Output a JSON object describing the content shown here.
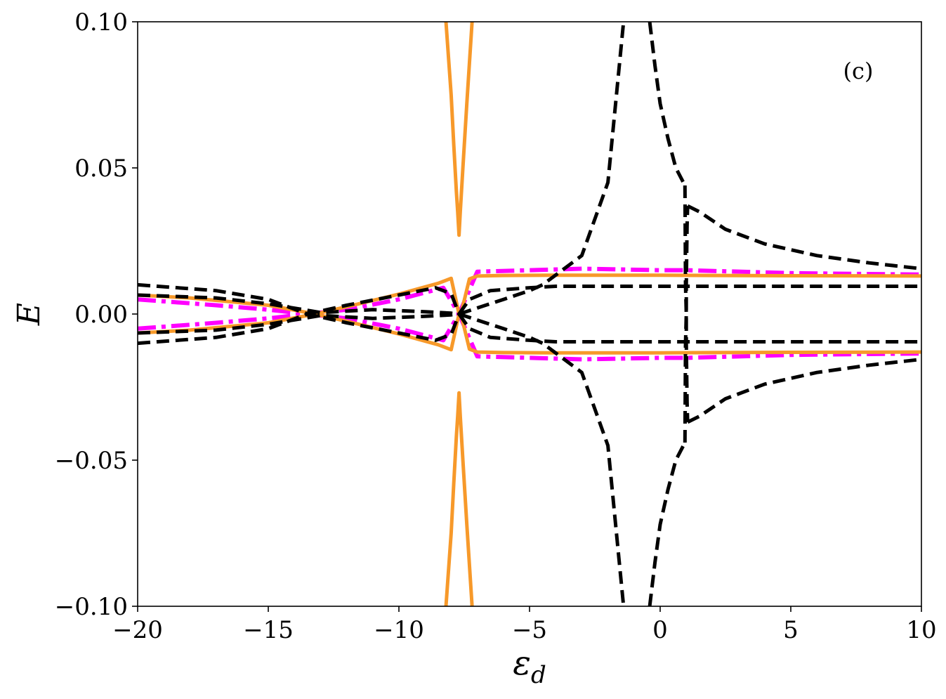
{
  "chart_data": {
    "type": "line",
    "title": "",
    "xlabel": "ε",
    "xlabel_sub": "d",
    "ylabel": "E",
    "xlim": [
      -20,
      10
    ],
    "ylim": [
      -0.1,
      0.1
    ],
    "xticks": [
      -20,
      -15,
      -10,
      -5,
      0,
      5,
      10
    ],
    "xtick_labels": [
      "−20",
      "−15",
      "−10",
      "−5",
      "0",
      "5",
      "10"
    ],
    "yticks": [
      0.1,
      0.05,
      0.0,
      -0.05,
      -0.1
    ],
    "ytick_labels": [
      "0.10",
      "0.05",
      "0.00",
      "−0.05",
      "−0.10"
    ],
    "annotation": "(c)",
    "grid": false,
    "legend": "none",
    "colors": {
      "orange": "#f7992a",
      "magenta": "#ff00ff",
      "black": "#000000"
    },
    "series": [
      {
        "style": "dash-dot",
        "color": "#ff00ff",
        "x": [
          -20,
          -17,
          -15,
          -13.5,
          -12,
          -10,
          -8.3,
          -7.7,
          -7,
          -5,
          -3,
          0,
          1,
          5,
          10
        ],
        "y": [
          0.005,
          0.003,
          0.0015,
          0,
          -0.0015,
          -0.005,
          -0.009,
          0,
          0.0145,
          0.015,
          0.0155,
          0.015,
          0.015,
          0.014,
          0.0135
        ]
      },
      {
        "style": "dash-dot",
        "color": "#ff00ff",
        "x": [
          -20,
          -17,
          -15,
          -13.5,
          -12,
          -10,
          -8.3,
          -7.7,
          -7,
          -5,
          -3,
          0,
          1,
          5,
          10
        ],
        "y": [
          -0.005,
          -0.003,
          -0.0015,
          0,
          0.0015,
          0.005,
          0.009,
          0,
          -0.0145,
          -0.015,
          -0.0155,
          -0.015,
          -0.015,
          -0.014,
          -0.0135
        ]
      },
      {
        "style": "solid",
        "color": "#f7992a",
        "x": [
          -20,
          -18,
          -15,
          -13.2,
          -12,
          -10,
          -8.5,
          -8,
          -7.7
        ],
        "y": [
          0.0065,
          0.0055,
          0.003,
          0,
          -0.0025,
          -0.0068,
          -0.0105,
          -0.0122,
          0
        ]
      },
      {
        "style": "solid",
        "color": "#f7992a",
        "x": [
          -20,
          -18,
          -15,
          -13.2,
          -12,
          -10,
          -8.5,
          -8,
          -7.7
        ],
        "y": [
          -0.0065,
          -0.0055,
          -0.003,
          0,
          0.0025,
          0.0068,
          0.0105,
          0.0122,
          0
        ]
      },
      {
        "style": "solid",
        "color": "#f7992a",
        "x": [
          -7.6,
          -7.3,
          -7,
          -6,
          -4,
          -2,
          0,
          2,
          5,
          10
        ],
        "y": [
          0.001,
          0.012,
          0.013,
          0.0132,
          0.0133,
          0.0133,
          0.0133,
          0.0132,
          0.0131,
          0.013
        ]
      },
      {
        "style": "solid",
        "color": "#f7992a",
        "x": [
          -7.6,
          -7.3,
          -7,
          -6,
          -4,
          -2,
          0,
          2,
          5,
          10
        ],
        "y": [
          -0.001,
          -0.012,
          -0.013,
          -0.0132,
          -0.0133,
          -0.0133,
          -0.0133,
          -0.0132,
          -0.0131,
          -0.013
        ]
      },
      {
        "style": "solid",
        "color": "#f7992a",
        "x": [
          -8.2,
          -8.0,
          -7.9,
          -7.8,
          -7.75,
          -7.7,
          -7.65,
          -7.55,
          -7.4,
          -7.2
        ],
        "y": [
          0.1,
          0.075,
          0.058,
          0.042,
          0.035,
          0.027,
          0.035,
          0.05,
          0.072,
          0.1
        ]
      },
      {
        "style": "solid",
        "color": "#f7992a",
        "x": [
          -8.2,
          -8.0,
          -7.9,
          -7.8,
          -7.75,
          -7.7,
          -7.65,
          -7.55,
          -7.4,
          -7.2
        ],
        "y": [
          -0.1,
          -0.075,
          -0.058,
          -0.042,
          -0.035,
          -0.027,
          -0.035,
          -0.05,
          -0.072,
          -0.1
        ]
      },
      {
        "style": "dashed",
        "color": "#000000",
        "x": [
          -20,
          -17,
          -15,
          -13.5,
          -12,
          -10,
          -8.6,
          -8.0,
          -7.7
        ],
        "y": [
          0.01,
          0.008,
          0.005,
          0,
          -0.003,
          -0.0065,
          -0.009,
          -0.007,
          0
        ]
      },
      {
        "style": "dashed",
        "color": "#000000",
        "x": [
          -20,
          -17,
          -15,
          -13.5,
          -12,
          -10,
          -8.6,
          -8.0,
          -7.7
        ],
        "y": [
          -0.01,
          -0.008,
          -0.005,
          0,
          0.003,
          0.0065,
          0.009,
          0.007,
          0
        ]
      },
      {
        "style": "dashed",
        "color": "#000000",
        "x": [
          -20,
          -17,
          -15,
          -13,
          -11,
          -9,
          -8.0,
          -7.7
        ],
        "y": [
          0.0065,
          0.0055,
          0.0035,
          0.0005,
          0.0015,
          0.0008,
          0.0003,
          0
        ]
      },
      {
        "style": "dashed",
        "color": "#000000",
        "x": [
          -20,
          -17,
          -15,
          -13,
          -11,
          -9,
          -8.0,
          -7.7
        ],
        "y": [
          -0.0065,
          -0.0055,
          -0.0035,
          -0.0005,
          -0.0015,
          -0.0008,
          -0.0003,
          0
        ]
      },
      {
        "style": "dashed",
        "color": "#000000",
        "x": [
          -7.7,
          -7.3,
          -6.5,
          -5,
          -4,
          -2,
          0,
          1,
          5,
          10
        ],
        "y": [
          0,
          0.005,
          0.008,
          0.009,
          0.0095,
          0.0095,
          0.0095,
          0.0095,
          0.0095,
          0.0095
        ]
      },
      {
        "style": "dashed",
        "color": "#000000",
        "x": [
          -7.7,
          -7.3,
          -6.5,
          -5,
          -4,
          -2,
          0,
          1,
          5,
          10
        ],
        "y": [
          0,
          -0.005,
          -0.008,
          -0.009,
          -0.0095,
          -0.0095,
          -0.0095,
          -0.0095,
          -0.0095,
          -0.0095
        ]
      },
      {
        "style": "dashed",
        "color": "#000000",
        "x": [
          -7.7,
          -6,
          -5,
          -4.5,
          -3,
          -2,
          -1.4
        ],
        "y": [
          0,
          -0.005,
          -0.008,
          -0.01,
          -0.02,
          -0.045,
          -0.1
        ]
      },
      {
        "style": "dashed",
        "color": "#000000",
        "x": [
          -7.7,
          -6,
          -5,
          -4.5,
          -3,
          -2,
          -1.4
        ],
        "y": [
          0,
          0.005,
          0.008,
          0.01,
          0.02,
          0.045,
          0.1
        ]
      },
      {
        "style": "dashed",
        "color": "#000000",
        "x": [
          -0.4,
          -0.2,
          0,
          0.3,
          0.6,
          0.95
        ],
        "y": [
          0.1,
          0.085,
          0.072,
          0.06,
          0.05,
          0.044
        ]
      },
      {
        "style": "dashed",
        "color": "#000000",
        "x": [
          -0.4,
          -0.2,
          0,
          0.3,
          0.6,
          0.95
        ],
        "y": [
          -0.1,
          -0.085,
          -0.072,
          -0.06,
          -0.05,
          -0.044
        ]
      },
      {
        "style": "dashed",
        "color": "#000000",
        "x": [
          0.95,
          0.97,
          1.0,
          1.0,
          1.03,
          1.05
        ],
        "y": [
          0.044,
          0.01,
          0.0,
          -0.01,
          -0.03,
          -0.037
        ]
      },
      {
        "style": "dashed",
        "color": "#000000",
        "x": [
          0.95,
          0.97,
          1.0,
          1.0,
          1.03,
          1.05
        ],
        "y": [
          -0.044,
          -0.01,
          0.0,
          0.01,
          0.03,
          0.037
        ]
      },
      {
        "style": "dashed",
        "color": "#000000",
        "x": [
          1.05,
          1.5,
          2.5,
          4,
          6,
          8,
          10
        ],
        "y": [
          0.037,
          0.035,
          0.029,
          0.024,
          0.02,
          0.0175,
          0.0155
        ]
      },
      {
        "style": "dashed",
        "color": "#000000",
        "x": [
          1.05,
          1.5,
          2.5,
          4,
          6,
          8,
          10
        ],
        "y": [
          -0.037,
          -0.035,
          -0.029,
          -0.024,
          -0.02,
          -0.0175,
          -0.0155
        ]
      }
    ]
  }
}
